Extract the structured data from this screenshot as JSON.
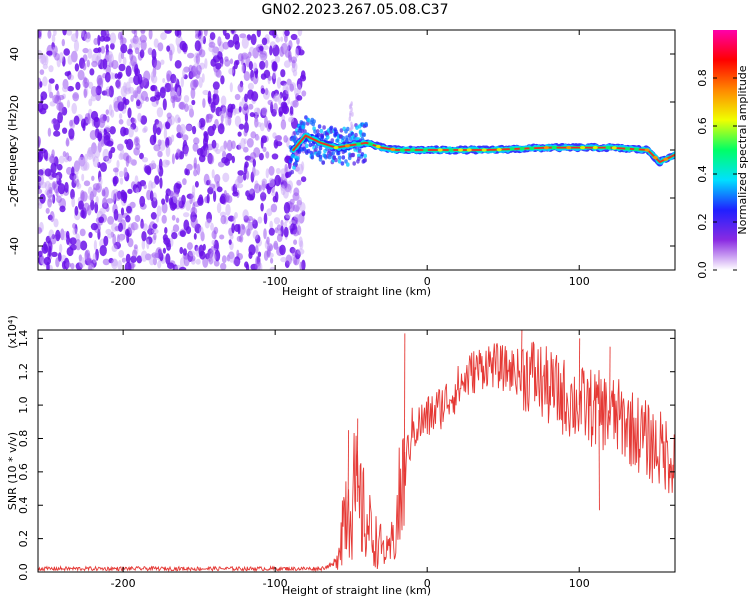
{
  "title": "GN02.2023.267.05.08.C37",
  "colors": {
    "purple": "#6a1fe8",
    "line": "#e53935",
    "frame": "#000000"
  },
  "chart_data": [
    {
      "type": "heatmap",
      "panel": "top",
      "xlabel": "Height of straight line (km)",
      "ylabel": "Frequency (Hz)",
      "xlim": [
        -256,
        163
      ],
      "ylim": [
        -50,
        50
      ],
      "x_ticks": [
        -200,
        -100,
        0,
        100
      ],
      "y_ticks": [
        -40,
        -20,
        0,
        20,
        40
      ],
      "colorbar": {
        "label": "Normalized spectral amplitude",
        "range": [
          0,
          1
        ],
        "ticks": [
          "0.0",
          "0.2",
          "0.4",
          "0.6",
          "0.8"
        ],
        "colors": [
          "#ffffff",
          "#8a2be2",
          "#2020ff",
          "#00e0ff",
          "#00ff66",
          "#f0ff00",
          "#ff8800",
          "#ff0000",
          "#ff00aa"
        ]
      },
      "noise_region_x": [
        -256,
        -85
      ],
      "signal_track": [
        {
          "x": -88,
          "y": 0
        },
        {
          "x": -80,
          "y": 6
        },
        {
          "x": -70,
          "y": 3
        },
        {
          "x": -60,
          "y": 1
        },
        {
          "x": -50,
          "y": 2
        },
        {
          "x": -40,
          "y": 3
        },
        {
          "x": -30,
          "y": 1
        },
        {
          "x": -20,
          "y": 0
        },
        {
          "x": 0,
          "y": 0
        },
        {
          "x": 40,
          "y": 0
        },
        {
          "x": 80,
          "y": 1
        },
        {
          "x": 120,
          "y": 1
        },
        {
          "x": 145,
          "y": 0
        },
        {
          "x": 153,
          "y": -5
        },
        {
          "x": 163,
          "y": -2
        }
      ]
    },
    {
      "type": "line",
      "panel": "bottom",
      "xlabel": "Height of straight line (km)",
      "ylabel": "SNR (10 * v/v)",
      "y_multiplier": "(x10⁴)",
      "xlim": [
        -256,
        163
      ],
      "ylim": [
        0,
        1.45
      ],
      "x_ticks": [
        -200,
        -100,
        0,
        100
      ],
      "y_ticks": [
        "0.0",
        "0.2",
        "0.4",
        "0.6",
        "0.8",
        "1.0",
        "1.2",
        "1.4"
      ],
      "series": [
        {
          "x": [
            -256,
            -200,
            -150,
            -100,
            -70,
            -60,
            -55,
            -50,
            -45,
            -40,
            -35,
            -30,
            -25,
            -20,
            -15,
            -10,
            0,
            10,
            20,
            30,
            40,
            50,
            60,
            70,
            80,
            90,
            100,
            110,
            120,
            130,
            140,
            150,
            163
          ],
          "y": [
            0.02,
            0.02,
            0.02,
            0.02,
            0.02,
            0.05,
            0.35,
            0.5,
            0.4,
            0.3,
            0.2,
            0.15,
            0.1,
            0.3,
            0.6,
            0.85,
            0.92,
            1.0,
            1.1,
            1.2,
            1.25,
            1.22,
            1.2,
            1.18,
            1.1,
            1.05,
            1.0,
            0.98,
            0.95,
            0.9,
            0.82,
            0.75,
            0.68
          ]
        }
      ]
    }
  ]
}
